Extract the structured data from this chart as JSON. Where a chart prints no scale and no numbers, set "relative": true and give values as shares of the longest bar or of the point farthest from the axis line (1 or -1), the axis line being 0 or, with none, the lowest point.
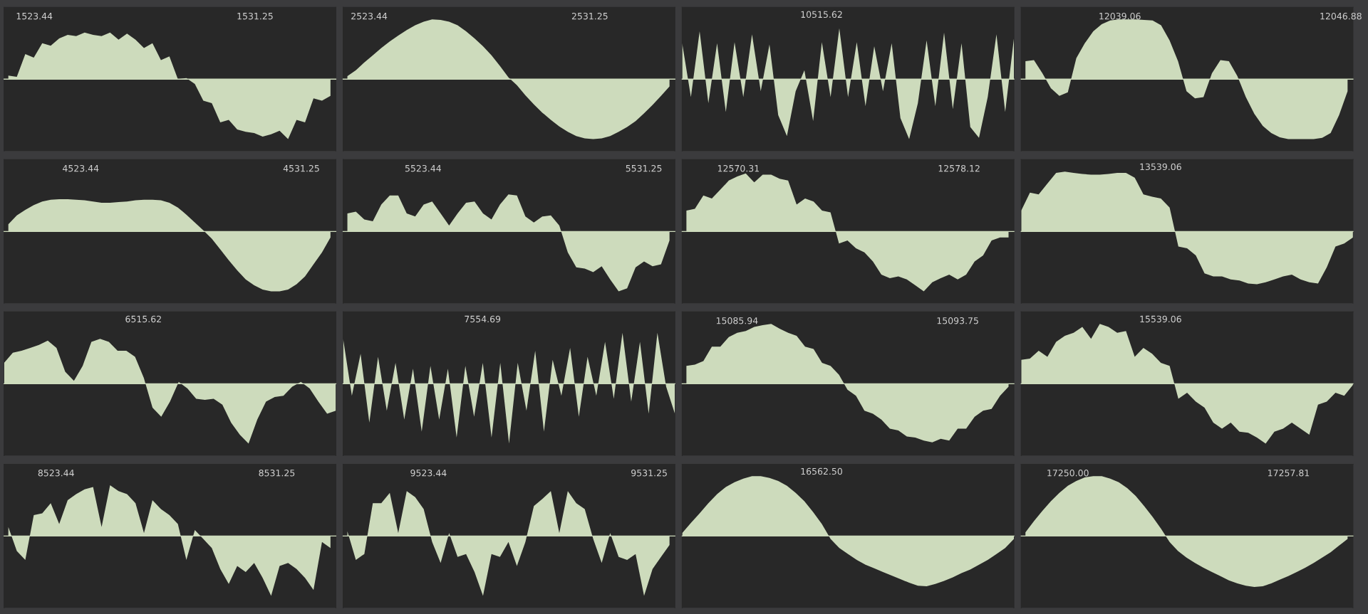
{
  "chart_data": [
    {
      "type": "area",
      "relative": true,
      "tick_labels": "x",
      "color": "#cddbbc",
      "xlim": [
        1522.37,
        1534.11
      ],
      "xticks": [
        1523.44,
        1531.25
      ],
      "x": [
        1522.52,
        1522.82,
        1523.12,
        1523.42,
        1523.72,
        1524.02,
        1524.32,
        1524.62,
        1524.92,
        1525.22,
        1525.52,
        1525.82,
        1526.12,
        1526.42,
        1526.72,
        1527.02,
        1527.32,
        1527.62,
        1527.92,
        1528.22,
        1528.52,
        1528.82,
        1529.12,
        1529.42,
        1529.72,
        1530.02,
        1530.32,
        1530.62,
        1530.92,
        1531.22,
        1531.52,
        1531.82,
        1532.12,
        1532.42,
        1532.72,
        1533.02,
        1533.32,
        1533.62,
        1533.92
      ],
      "values": [
        0.06,
        0.04,
        0.42,
        0.36,
        0.6,
        0.56,
        0.68,
        0.74,
        0.72,
        0.78,
        0.74,
        0.72,
        0.78,
        0.66,
        0.76,
        0.66,
        0.52,
        0.6,
        0.32,
        0.38,
        0,
        0.02,
        -0.08,
        -0.36,
        -0.4,
        -0.72,
        -0.68,
        -0.84,
        -0.88,
        -0.9,
        -0.96,
        -0.92,
        -0.86,
        -1,
        -0.68,
        -0.72,
        -0.32,
        -0.36,
        -0.28
      ]
    },
    {
      "type": "area",
      "relative": true,
      "tick_labels": "x",
      "color": "#cddbbc",
      "xlim": [
        2522.52,
        2534.26
      ],
      "xticks": [
        2523.44,
        2531.25
      ],
      "x": [
        2522.67,
        2522.97,
        2523.27,
        2523.57,
        2523.87,
        2524.17,
        2524.47,
        2524.77,
        2525.07,
        2525.37,
        2525.67,
        2525.97,
        2526.27,
        2526.57,
        2526.87,
        2527.17,
        2527.47,
        2527.77,
        2528.07,
        2528.37,
        2528.67,
        2528.97,
        2529.27,
        2529.57,
        2529.87,
        2530.17,
        2530.47,
        2530.77,
        2531.07,
        2531.37,
        2531.67,
        2531.97,
        2532.27,
        2532.57,
        2532.87,
        2533.17,
        2533.47,
        2533.77,
        2534.07
      ],
      "values": [
        0.05,
        0.15,
        0.28,
        0.4,
        0.52,
        0.63,
        0.73,
        0.82,
        0.9,
        0.96,
        1.0,
        0.99,
        0.96,
        0.9,
        0.8,
        0.68,
        0.55,
        0.4,
        0.22,
        0.03,
        -0.1,
        -0.27,
        -0.42,
        -0.56,
        -0.68,
        -0.79,
        -0.88,
        -0.95,
        -0.99,
        -1.0,
        -0.99,
        -0.95,
        -0.88,
        -0.8,
        -0.7,
        -0.57,
        -0.43,
        -0.28,
        -0.12
      ]
    },
    {
      "type": "area",
      "relative": true,
      "tick_labels": false,
      "color": "#cddbbc",
      "annotations": [
        "10515.62"
      ],
      "categories": [
        null,
        null,
        null,
        null,
        null,
        null,
        null,
        null,
        null,
        null,
        null,
        null,
        null,
        null,
        null,
        null,
        null,
        null,
        null,
        null,
        null,
        null,
        null,
        null,
        null,
        null,
        null,
        null,
        null,
        null,
        null,
        null,
        null,
        null,
        null,
        null,
        null,
        null,
        null
      ],
      "values": [
        0.6,
        -0.3,
        0.8,
        -0.4,
        0.6,
        -0.55,
        0.62,
        -0.3,
        0.75,
        -0.2,
        0.58,
        -0.6,
        -0.95,
        -0.2,
        0.15,
        -0.7,
        0.62,
        -0.3,
        0.85,
        -0.3,
        0.62,
        -0.45,
        0.55,
        -0.2,
        0.6,
        -0.65,
        -1.0,
        -0.4,
        0.65,
        -0.45,
        0.78,
        -0.5,
        0.6,
        -0.8,
        -0.98,
        -0.3,
        0.75,
        -0.55,
        0.68
      ]
    },
    {
      "type": "area",
      "relative": true,
      "tick_labels": "x",
      "color": "#cddbbc",
      "xlim": [
        12035.57,
        12047.31
      ],
      "xticks": [
        12039.06,
        12046.88
      ],
      "x": [
        12035.72,
        12036.02,
        12036.32,
        12036.62,
        12036.92,
        12037.22,
        12037.52,
        12037.82,
        12038.12,
        12038.42,
        12038.72,
        12039.02,
        12039.32,
        12039.62,
        12039.92,
        12040.22,
        12040.52,
        12040.82,
        12041.12,
        12041.42,
        12041.72,
        12042.02,
        12042.32,
        12042.62,
        12042.92,
        12043.22,
        12043.52,
        12043.82,
        12044.12,
        12044.42,
        12044.72,
        12045.02,
        12045.32,
        12045.62,
        12045.92,
        12046.22,
        12046.52,
        12046.82,
        12047.12
      ],
      "values": [
        0.3,
        0.32,
        0.1,
        -0.15,
        -0.28,
        -0.22,
        0.35,
        0.6,
        0.8,
        0.92,
        0.98,
        1.0,
        1.0,
        1.0,
        0.99,
        0.98,
        0.9,
        0.65,
        0.3,
        -0.2,
        -0.32,
        -0.3,
        0.1,
        0.32,
        0.3,
        0.05,
        -0.3,
        -0.58,
        -0.78,
        -0.9,
        -0.97,
        -1.0,
        -1.0,
        -1.0,
        -1.0,
        -0.98,
        -0.9,
        -0.6,
        -0.2
      ]
    },
    {
      "type": "area",
      "relative": true,
      "tick_labels": "x",
      "color": "#cddbbc",
      "xlim": [
        4520.73,
        4532.47
      ],
      "xticks": [
        4523.44,
        4531.25
      ],
      "x": [
        4520.88,
        4521.18,
        4521.48,
        4521.78,
        4522.08,
        4522.38,
        4522.68,
        4522.98,
        4523.28,
        4523.58,
        4523.88,
        4524.18,
        4524.48,
        4524.78,
        4525.08,
        4525.38,
        4525.68,
        4525.98,
        4526.28,
        4526.58,
        4526.88,
        4527.18,
        4527.48,
        4527.78,
        4528.08,
        4528.38,
        4528.68,
        4528.98,
        4529.28,
        4529.58,
        4529.88,
        4530.18,
        4530.48,
        4530.78,
        4531.08,
        4531.38,
        4531.68,
        4531.98,
        4532.28
      ],
      "values": [
        0.12,
        0.27,
        0.36,
        0.44,
        0.5,
        0.53,
        0.54,
        0.54,
        0.53,
        0.52,
        0.5,
        0.48,
        0.48,
        0.49,
        0.5,
        0.52,
        0.53,
        0.53,
        0.52,
        0.48,
        0.4,
        0.28,
        0.15,
        0.02,
        -0.12,
        -0.3,
        -0.48,
        -0.65,
        -0.8,
        -0.9,
        -0.97,
        -1.0,
        -1.0,
        -0.97,
        -0.88,
        -0.75,
        -0.55,
        -0.35,
        -0.1
      ]
    },
    {
      "type": "area",
      "relative": true,
      "tick_labels": "x",
      "color": "#cddbbc",
      "xlim": [
        5520.61,
        5532.35
      ],
      "xticks": [
        5523.44,
        5531.25
      ],
      "x": [
        5520.76,
        5521.06,
        5521.36,
        5521.66,
        5521.96,
        5522.26,
        5522.56,
        5522.86,
        5523.16,
        5523.46,
        5523.76,
        5524.06,
        5524.36,
        5524.66,
        5524.96,
        5525.26,
        5525.56,
        5525.86,
        5526.16,
        5526.46,
        5526.76,
        5527.06,
        5527.36,
        5527.66,
        5527.96,
        5528.26,
        5528.56,
        5528.86,
        5529.16,
        5529.46,
        5529.76,
        5530.06,
        5530.36,
        5530.66,
        5530.96,
        5531.26,
        5531.56,
        5531.86,
        5532.16
      ],
      "values": [
        0.3,
        0.33,
        0.2,
        0.17,
        0.45,
        0.6,
        0.6,
        0.3,
        0.25,
        0.45,
        0.5,
        0.3,
        0.1,
        0.3,
        0.48,
        0.5,
        0.3,
        0.2,
        0.45,
        0.62,
        0.6,
        0.25,
        0.15,
        0.25,
        0.27,
        0.1,
        -0.35,
        -0.6,
        -0.62,
        -0.68,
        -0.58,
        -0.8,
        -1.0,
        -0.95,
        -0.6,
        -0.5,
        -0.58,
        -0.55,
        -0.15
      ]
    },
    {
      "type": "area",
      "relative": true,
      "tick_labels": "x",
      "color": "#cddbbc",
      "xlim": [
        12568.32,
        12580.06
      ],
      "xticks": [
        12570.31,
        12578.12
      ],
      "x": [
        12568.47,
        12568.77,
        12569.07,
        12569.37,
        12569.67,
        12569.97,
        12570.27,
        12570.57,
        12570.87,
        12571.17,
        12571.47,
        12571.77,
        12572.07,
        12572.37,
        12572.67,
        12572.97,
        12573.27,
        12573.57,
        12573.87,
        12574.17,
        12574.47,
        12574.77,
        12575.07,
        12575.37,
        12575.67,
        12575.97,
        12576.27,
        12576.57,
        12576.87,
        12577.17,
        12577.47,
        12577.77,
        12578.07,
        12578.37,
        12578.67,
        12578.97,
        12579.27,
        12579.57,
        12579.87
      ],
      "values": [
        0.35,
        0.38,
        0.6,
        0.55,
        0.7,
        0.85,
        0.92,
        0.97,
        0.82,
        0.95,
        0.95,
        0.88,
        0.85,
        0.45,
        0.55,
        0.5,
        0.35,
        0.32,
        -0.2,
        -0.15,
        -0.28,
        -0.35,
        -0.5,
        -0.72,
        -0.78,
        -0.75,
        -0.8,
        -0.9,
        -1.0,
        -0.85,
        -0.78,
        -0.72,
        -0.8,
        -0.72,
        -0.5,
        -0.4,
        -0.15,
        -0.1,
        -0.1
      ]
    },
    {
      "type": "area",
      "relative": true,
      "tick_labels": false,
      "color": "#cddbbc",
      "annotations": [
        "13539.06"
      ],
      "categories": [
        null,
        null,
        null,
        null,
        null,
        null,
        null,
        null,
        null,
        null,
        null,
        null,
        null,
        null,
        null,
        null,
        null,
        null,
        null,
        null,
        null,
        null,
        null,
        null,
        null,
        null,
        null,
        null,
        null,
        null,
        null,
        null,
        null,
        null,
        null,
        null,
        null,
        null,
        null
      ],
      "values": [
        0.35,
        0.65,
        0.62,
        0.8,
        0.98,
        1.0,
        0.98,
        0.96,
        0.95,
        0.95,
        0.96,
        0.98,
        0.98,
        0.9,
        0.62,
        0.58,
        0.55,
        0.4,
        -0.25,
        -0.28,
        -0.4,
        -0.7,
        -0.75,
        -0.75,
        -0.8,
        -0.82,
        -0.87,
        -0.88,
        -0.85,
        -0.8,
        -0.75,
        -0.72,
        -0.8,
        -0.85,
        -0.87,
        -0.6,
        -0.25,
        -0.2,
        -0.1
      ]
    },
    {
      "type": "area",
      "relative": true,
      "tick_labels": false,
      "color": "#cddbbc",
      "annotations": [
        "6515.62"
      ],
      "categories": [
        null,
        null,
        null,
        null,
        null,
        null,
        null,
        null,
        null,
        null,
        null,
        null,
        null,
        null,
        null,
        null,
        null,
        null,
        null,
        null,
        null,
        null,
        null,
        null,
        null,
        null,
        null,
        null,
        null,
        null,
        null,
        null,
        null,
        null,
        null,
        null,
        null,
        null,
        null
      ],
      "values": [
        0.35,
        0.52,
        0.55,
        0.6,
        0.65,
        0.72,
        0.6,
        0.2,
        0.05,
        0.3,
        0.7,
        0.75,
        0.7,
        0.55,
        0.55,
        0.45,
        0.1,
        -0.4,
        -0.55,
        -0.3,
        0.03,
        -0.08,
        -0.25,
        -0.27,
        -0.25,
        -0.35,
        -0.65,
        -0.85,
        -1.0,
        -0.6,
        -0.3,
        -0.22,
        -0.2,
        -0.05,
        0.03,
        -0.08,
        -0.3,
        -0.5,
        -0.45
      ]
    },
    {
      "type": "area",
      "relative": true,
      "tick_labels": false,
      "color": "#cddbbc",
      "annotations": [
        "7554.69"
      ],
      "categories": [
        null,
        null,
        null,
        null,
        null,
        null,
        null,
        null,
        null,
        null,
        null,
        null,
        null,
        null,
        null,
        null,
        null,
        null,
        null,
        null,
        null,
        null,
        null,
        null,
        null,
        null,
        null,
        null,
        null,
        null,
        null,
        null,
        null,
        null,
        null,
        null,
        null,
        null,
        null
      ],
      "values": [
        0.75,
        -0.2,
        0.5,
        -0.65,
        0.45,
        -0.45,
        0.35,
        -0.6,
        0.25,
        -0.8,
        0.3,
        -0.6,
        0.25,
        -0.9,
        0.3,
        -0.55,
        0.35,
        -0.9,
        0.35,
        -1.0,
        0.35,
        -0.45,
        0.55,
        -0.8,
        0.4,
        -0.2,
        0.6,
        -0.55,
        0.45,
        -0.2,
        0.7,
        -0.25,
        0.85,
        -0.3,
        0.7,
        -0.5,
        0.85,
        -0.05,
        -0.5
      ]
    },
    {
      "type": "area",
      "relative": true,
      "tick_labels": "x",
      "color": "#cddbbc",
      "xlim": [
        15084.0,
        15095.74
      ],
      "xticks": [
        15085.94,
        15093.75
      ],
      "x": [
        15084.15,
        15084.45,
        15084.75,
        15085.05,
        15085.35,
        15085.65,
        15085.95,
        15086.25,
        15086.55,
        15086.85,
        15087.15,
        15087.45,
        15087.75,
        15088.05,
        15088.35,
        15088.65,
        15088.95,
        15089.25,
        15089.55,
        15089.85,
        15090.15,
        15090.45,
        15090.75,
        15091.05,
        15091.35,
        15091.65,
        15091.95,
        15092.25,
        15092.55,
        15092.85,
        15093.15,
        15093.45,
        15093.75,
        15094.05,
        15094.35,
        15094.65,
        15094.95,
        15095.25,
        15095.55
      ],
      "values": [
        0.3,
        0.32,
        0.38,
        0.62,
        0.62,
        0.78,
        0.85,
        0.88,
        0.95,
        0.98,
        1.0,
        0.92,
        0.85,
        0.8,
        0.62,
        0.58,
        0.35,
        0.3,
        0.15,
        -0.1,
        -0.2,
        -0.45,
        -0.5,
        -0.6,
        -0.75,
        -0.78,
        -0.88,
        -0.9,
        -0.95,
        -0.98,
        -0.92,
        -0.95,
        -0.75,
        -0.75,
        -0.55,
        -0.45,
        -0.42,
        -0.2,
        -0.05
      ]
    },
    {
      "type": "area",
      "relative": true,
      "tick_labels": false,
      "color": "#cddbbc",
      "annotations": [
        "15539.06"
      ],
      "categories": [
        null,
        null,
        null,
        null,
        null,
        null,
        null,
        null,
        null,
        null,
        null,
        null,
        null,
        null,
        null,
        null,
        null,
        null,
        null,
        null,
        null,
        null,
        null,
        null,
        null,
        null,
        null,
        null,
        null,
        null,
        null,
        null,
        null,
        null,
        null,
        null,
        null,
        null,
        null
      ],
      "values": [
        0.4,
        0.42,
        0.55,
        0.45,
        0.7,
        0.8,
        0.85,
        0.95,
        0.75,
        1.0,
        0.95,
        0.85,
        0.88,
        0.45,
        0.6,
        0.5,
        0.35,
        0.3,
        -0.25,
        -0.15,
        -0.3,
        -0.4,
        -0.65,
        -0.75,
        -0.65,
        -0.8,
        -0.82,
        -0.9,
        -1.0,
        -0.8,
        -0.75,
        -0.65,
        -0.75,
        -0.85,
        -0.35,
        -0.3,
        -0.15,
        -0.2,
        -0.02
      ]
    },
    {
      "type": "area",
      "relative": true,
      "tick_labels": "x",
      "color": "#cddbbc",
      "xlim": [
        8521.6,
        8533.34
      ],
      "xticks": [
        8523.44,
        8531.25
      ],
      "x": [
        8521.75,
        8522.05,
        8522.35,
        8522.65,
        8522.95,
        8523.25,
        8523.55,
        8523.85,
        8524.15,
        8524.45,
        8524.75,
        8525.05,
        8525.35,
        8525.65,
        8525.95,
        8526.25,
        8526.55,
        8526.85,
        8527.15,
        8527.45,
        8527.75,
        8528.05,
        8528.35,
        8528.65,
        8528.95,
        8529.25,
        8529.55,
        8529.85,
        8530.15,
        8530.45,
        8530.75,
        8531.05,
        8531.35,
        8531.65,
        8531.95,
        8532.25,
        8532.55,
        8532.85,
        8533.15
      ],
      "values": [
        0.15,
        -0.25,
        -0.4,
        0.35,
        0.38,
        0.55,
        0.2,
        0.6,
        0.7,
        0.78,
        0.82,
        0.15,
        0.85,
        0.75,
        0.7,
        0.55,
        0.05,
        0.6,
        0.45,
        0.35,
        0.2,
        -0.4,
        0.1,
        -0.05,
        -0.2,
        -0.55,
        -0.8,
        -0.5,
        -0.6,
        -0.45,
        -0.7,
        -1.0,
        -0.5,
        -0.45,
        -0.55,
        -0.7,
        -0.9,
        -0.1,
        -0.2
      ]
    },
    {
      "type": "area",
      "relative": true,
      "tick_labels": "x",
      "color": "#cddbbc",
      "xlim": [
        9520.42,
        9532.16
      ],
      "xticks": [
        9523.44,
        9531.25
      ],
      "x": [
        9520.57,
        9520.87,
        9521.17,
        9521.47,
        9521.77,
        9522.07,
        9522.37,
        9522.67,
        9522.97,
        9523.27,
        9523.57,
        9523.87,
        9524.17,
        9524.47,
        9524.77,
        9525.07,
        9525.37,
        9525.67,
        9525.97,
        9526.27,
        9526.57,
        9526.87,
        9527.17,
        9527.47,
        9527.77,
        9528.07,
        9528.37,
        9528.67,
        9528.97,
        9529.27,
        9529.57,
        9529.87,
        9530.17,
        9530.47,
        9530.77,
        9531.07,
        9531.37,
        9531.67,
        9531.97
      ],
      "values": [
        0.08,
        -0.4,
        -0.3,
        0.55,
        0.55,
        0.72,
        0.05,
        0.75,
        0.65,
        0.45,
        -0.1,
        -0.45,
        0.05,
        -0.35,
        -0.3,
        -0.6,
        -1.0,
        -0.3,
        -0.35,
        -0.1,
        -0.5,
        -0.1,
        0.5,
        0.62,
        0.75,
        0.05,
        0.75,
        0.55,
        0.45,
        -0.05,
        -0.45,
        0.05,
        -0.35,
        -0.4,
        -0.3,
        -1.0,
        -0.55,
        -0.35,
        -0.15
      ]
    },
    {
      "type": "area",
      "relative": true,
      "tick_labels": false,
      "color": "#cddbbc",
      "annotations": [
        "16562.50"
      ],
      "categories": [
        null,
        null,
        null,
        null,
        null,
        null,
        null,
        null,
        null,
        null,
        null,
        null,
        null,
        null,
        null,
        null,
        null,
        null,
        null,
        null,
        null,
        null,
        null,
        null,
        null,
        null,
        null,
        null,
        null,
        null,
        null,
        null,
        null,
        null,
        null,
        null,
        null,
        null,
        null
      ],
      "values": [
        0.05,
        0.22,
        0.38,
        0.55,
        0.7,
        0.82,
        0.9,
        0.96,
        1.0,
        1.0,
        0.97,
        0.92,
        0.84,
        0.72,
        0.58,
        0.4,
        0.2,
        -0.05,
        -0.2,
        -0.3,
        -0.4,
        -0.48,
        -0.54,
        -0.6,
        -0.66,
        -0.72,
        -0.78,
        -0.83,
        -0.84,
        -0.8,
        -0.75,
        -0.69,
        -0.62,
        -0.56,
        -0.48,
        -0.4,
        -0.3,
        -0.2,
        -0.05
      ]
    },
    {
      "type": "area",
      "relative": true,
      "tick_labels": "x",
      "color": "#cddbbc",
      "xlim": [
        17248.35,
        17260.09
      ],
      "xticks": [
        {
          "value": 17250,
          "label": "17250.00"
        },
        17257.81
      ],
      "x": [
        17248.5,
        17248.8,
        17249.1,
        17249.4,
        17249.7,
        17250.0,
        17250.3,
        17250.6,
        17250.9,
        17251.2,
        17251.5,
        17251.8,
        17252.1,
        17252.4,
        17252.7,
        17253.0,
        17253.3,
        17253.6,
        17253.9,
        17254.2,
        17254.5,
        17254.8,
        17255.1,
        17255.4,
        17255.7,
        17256.0,
        17256.3,
        17256.6,
        17256.9,
        17257.2,
        17257.5,
        17257.8,
        17258.1,
        17258.4,
        17258.7,
        17259.0,
        17259.3,
        17259.6,
        17259.9
      ],
      "values": [
        0.06,
        0.25,
        0.42,
        0.58,
        0.72,
        0.84,
        0.92,
        0.98,
        1.0,
        1.0,
        0.96,
        0.9,
        0.8,
        0.67,
        0.5,
        0.32,
        0.12,
        -0.1,
        -0.25,
        -0.36,
        -0.45,
        -0.53,
        -0.6,
        -0.67,
        -0.74,
        -0.79,
        -0.83,
        -0.85,
        -0.84,
        -0.79,
        -0.73,
        -0.67,
        -0.6,
        -0.53,
        -0.45,
        -0.36,
        -0.27,
        -0.16,
        -0.05
      ]
    }
  ]
}
